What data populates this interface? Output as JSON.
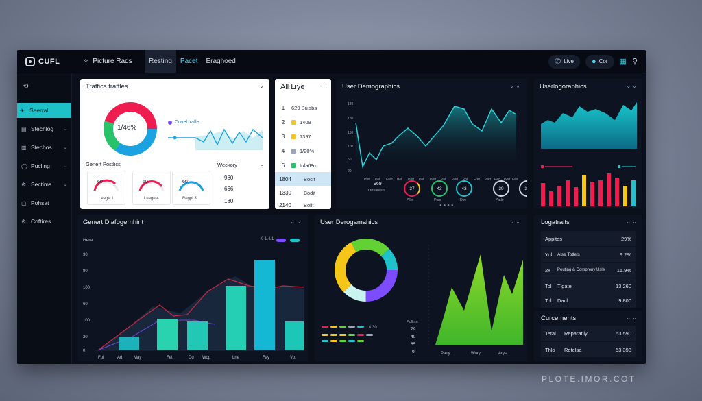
{
  "app": {
    "logo": "CUFL"
  },
  "topbar": {
    "brand": "Picture Rads",
    "tabs": [
      {
        "label": "Resting"
      },
      {
        "label": "Pacet"
      },
      {
        "label": "Eraghoed"
      }
    ],
    "btn_live": "Live",
    "btn_user": "Cor"
  },
  "sidebar": {
    "items": [
      {
        "label": "Seerral"
      },
      {
        "label": "Stechlog"
      },
      {
        "label": "Stechos"
      },
      {
        "label": "Pucling"
      },
      {
        "label": "Sectims"
      },
      {
        "label": "Pohsat"
      },
      {
        "label": "Coftires"
      }
    ]
  },
  "traffic": {
    "title": "Traffics traffles",
    "donut_label": "1/46%",
    "legend": "Covel trafle",
    "subtitle": "Genert Postlics",
    "weekday": "Weckory",
    "gauges": [
      {
        "value": "60",
        "label": "Leage 1"
      },
      {
        "value": "60",
        "label": "Leage 4"
      },
      {
        "value": "60",
        "label": "Regpl 3"
      }
    ],
    "col_values": [
      "980",
      "666",
      "180"
    ]
  },
  "all_live": {
    "title": "All Liye",
    "rows": [
      {
        "num": "1",
        "text": "629 Bulsbs"
      },
      {
        "num": "2",
        "text": "1409"
      },
      {
        "num": "3",
        "text": "1397"
      },
      {
        "num": "4",
        "text": "1/20%"
      },
      {
        "num": "6",
        "text": "Infa/Po"
      },
      {
        "num": "1804",
        "text": "Bocit"
      },
      {
        "num": "1330",
        "text": "Bodit"
      },
      {
        "num": "2140",
        "text": "Bolit"
      }
    ]
  },
  "user_demo_top": {
    "title": "User Demographics",
    "y_labels": [
      "180",
      "150",
      "130",
      "100",
      "50",
      "20"
    ],
    "x_labels": [
      "Piet",
      "Pol",
      "Fact",
      "Bel",
      "Ped",
      "Pol",
      "Ped",
      "Pol",
      "Pod",
      "Pol",
      "Fret",
      "Pad",
      "Ped",
      "Ped",
      "Fax"
    ],
    "stat_main_value": "969",
    "stat_main_label": "Onsarestil",
    "rings": [
      {
        "value": "37",
        "label": "Plhe"
      },
      {
        "value": "43",
        "label": "Pore"
      },
      {
        "value": "43",
        "label": "Doe"
      },
      {
        "value": "39",
        "label": "Pade"
      },
      {
        "value": "39",
        "label": "Lase"
      }
    ]
  },
  "user_logo": {
    "title": "Userlogoraphics"
  },
  "genert": {
    "title": "Genert Diafogernhint",
    "series_label": "Hera",
    "legend_text": "0 1.4/1",
    "y_labels": [
      "30",
      "80",
      "100",
      "60",
      "100",
      "20",
      "0"
    ],
    "x_labels": [
      "Ful",
      "Ad",
      "May",
      "Fet",
      "Do",
      "Wop",
      "Lne",
      "Fay",
      "Vot"
    ]
  },
  "user_demo_bottom": {
    "title": "User Derogamahics",
    "side_label": "Pollina",
    "side_values": [
      "79",
      "40",
      "65",
      "0"
    ],
    "legend_value": "0.30",
    "x_labels": [
      "Pany",
      "Wory",
      "Arys"
    ]
  },
  "logatraits": {
    "title": "Logatraits",
    "rows": [
      {
        "c1": "Appites",
        "c2": "",
        "c3": "29%"
      },
      {
        "c1": "Yol",
        "c2": "Alse Totlels",
        "c3": "9.2%"
      },
      {
        "c1": "2x",
        "c2": "Peuting & Compreny Usle",
        "c3": "15.9%"
      },
      {
        "c1": "Tol",
        "c2": "Tlgate",
        "c3": "13.260"
      },
      {
        "c1": "Tol",
        "c2": "Dacl",
        "c3": "9.800"
      }
    ]
  },
  "comments": {
    "title": "Curcements",
    "rows": [
      {
        "c1": "Tetal",
        "c2": "Reparatily",
        "c3": "53.590"
      },
      {
        "c1": "Thlo",
        "c2": "Retelsa",
        "c3": "53.393"
      }
    ]
  },
  "watermark": "PLOTE.IMOR.COT",
  "colors": {
    "accent": "#1fc1c8",
    "bg": "#0b0f1a",
    "red": "#ef1d4f",
    "yellow": "#f5c518",
    "green": "#62d133",
    "purple": "#7e4cff"
  }
}
